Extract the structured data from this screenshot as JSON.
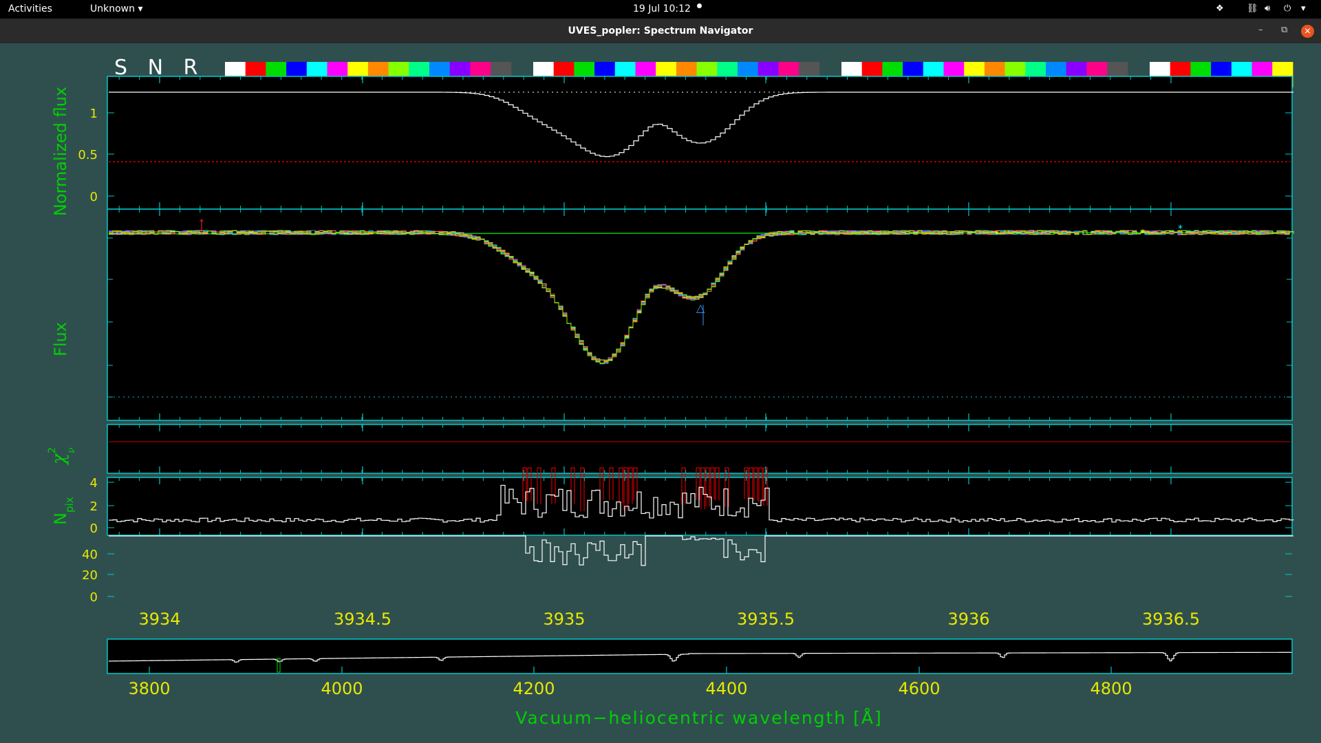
{
  "topbar": {
    "activities": "Activities",
    "app_menu": "Unknown",
    "clock": "19 Jul  10:12",
    "icons": [
      "dropbox-icon",
      "network-icon",
      "volume-icon",
      "power-icon",
      "chevron-down-icon"
    ]
  },
  "window": {
    "title": "UVES_popler: Spectrum Navigator",
    "controls": [
      "minimize-icon",
      "restore-icon",
      "close-icon"
    ]
  },
  "plot": {
    "snr_label": "S N R",
    "palette": [
      "#ffffff",
      "#ff0000",
      "#00dd00",
      "#0000ff",
      "#00ffff",
      "#ff00ff",
      "#ffff00",
      "#ff8800",
      "#88ff00",
      "#00ff88",
      "#0088ff",
      "#8800ff",
      "#ff0088",
      "#555555"
    ],
    "panels": {
      "norm": {
        "ylabel": "Normalized flux",
        "yticks": [
          "1",
          "0.5",
          "0"
        ]
      },
      "flux": {
        "ylabel": "Flux"
      },
      "chi": {
        "ylabel": "χ",
        "ylabel_sub": "ν",
        "ylabel_sup": "2",
        "yticks": [
          "4",
          "2",
          "0"
        ]
      },
      "npix": {
        "ylabel": "N",
        "ylabel_sub": "pix",
        "yticks": [
          "40",
          "20",
          "0"
        ]
      }
    },
    "zoom_xticks": [
      "3934",
      "3934.5",
      "3935",
      "3935.5",
      "3936",
      "3936.5"
    ],
    "overview_xticks": [
      "3800",
      "4000",
      "4200",
      "4400",
      "4600",
      "4800"
    ],
    "xlabel": "Vacuum−heliocentric wavelength [Å]",
    "colors": {
      "background": "#2f4f4f",
      "axes": "#00c8c8",
      "label_green": "#00d000",
      "tick_yellow": "#e8e800",
      "trace": "#ffffff",
      "highlight": "#cc0000"
    }
  }
}
